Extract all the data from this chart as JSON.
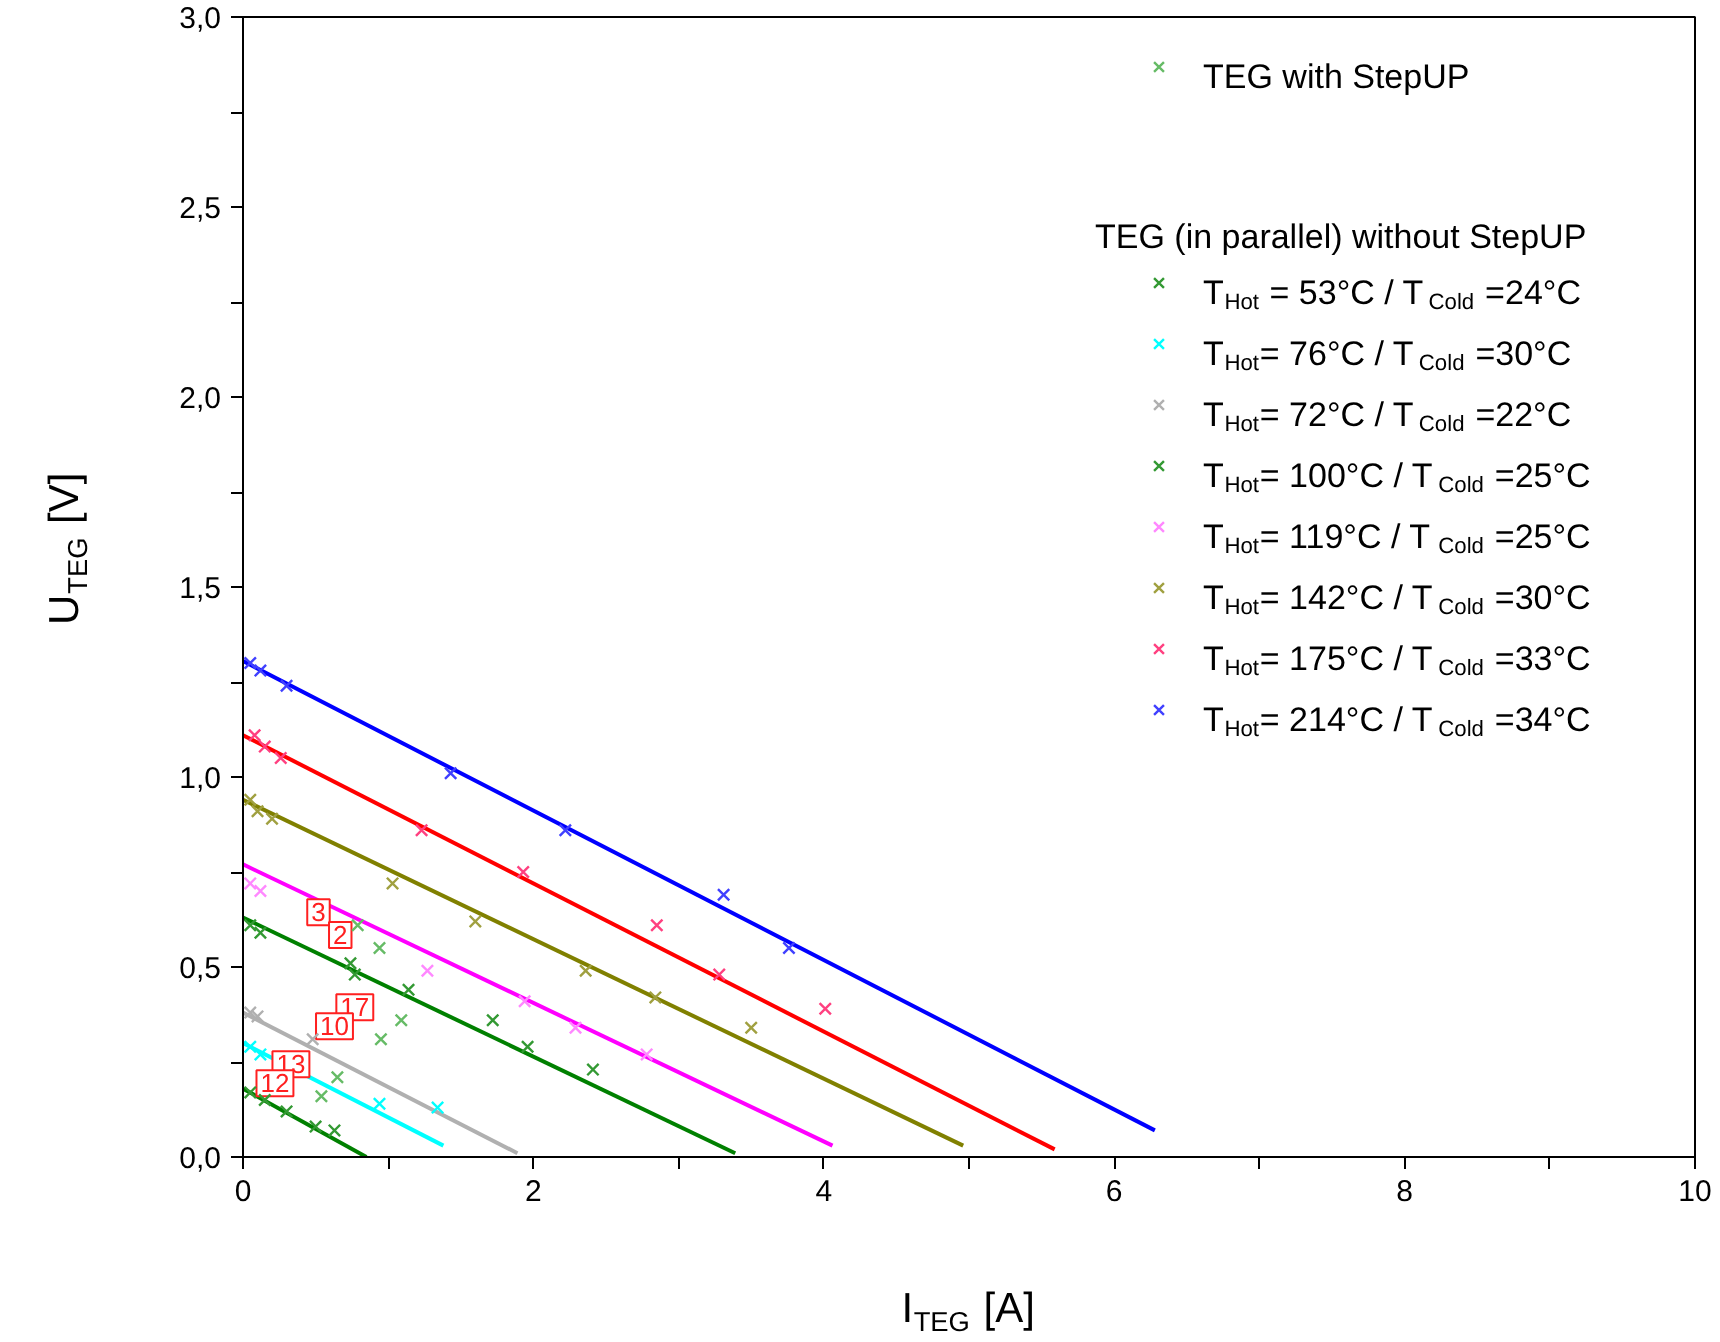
{
  "chart_data": {
    "type": "scatter",
    "xlabel": "I$_{TEG}$ [A]",
    "ylabel": "U$_{TEG}$ [V]",
    "legend_title": "TEG (in parallel) without StepUP",
    "legend": "top right",
    "marker": "cross",
    "grid": false,
    "xlim": [
      0,
      10
    ],
    "ylim": [
      0,
      3.0
    ],
    "xticks": [
      0,
      {
        "value": 1,
        "label": null
      },
      2,
      {
        "value": 3,
        "label": null
      },
      4,
      {
        "value": 5,
        "label": null
      },
      6,
      {
        "value": 7,
        "label": null
      },
      8,
      {
        "value": 9,
        "label": null
      },
      10
    ],
    "yticks": [
      {
        "value": 0,
        "label": "0,0"
      },
      {
        "value": 0.25,
        "label": null
      },
      {
        "value": 0.5,
        "label": "0,5"
      },
      {
        "value": 0.75,
        "label": null
      },
      {
        "value": 1.0,
        "label": "1,0"
      },
      {
        "value": 1.25,
        "label": null
      },
      {
        "value": 1.5,
        "label": "1,5"
      },
      {
        "value": 1.75,
        "label": null
      },
      {
        "value": 2.0,
        "label": "2,0"
      },
      {
        "value": 2.25,
        "label": null
      },
      {
        "value": 2.5,
        "label": "2,5"
      },
      {
        "value": 2.75,
        "label": null
      },
      {
        "value": 3.0,
        "label": "3,0"
      }
    ],
    "series": [
      {
        "name": "TEG with StepUP",
        "color": "#66bb66",
        "x": [
          0.79,
          0.94,
          1.09,
          0.95,
          0.65,
          0.54
        ],
        "values": [
          0.61,
          0.55,
          0.36,
          0.31,
          0.21,
          0.16
        ]
      },
      {
        "name": "T$_{Hot}$ = 53°C / T$_{Cold}$ =24°C",
        "color": "#339933",
        "x": [
          0.05,
          0.15,
          0.3,
          0.5,
          0.63
        ],
        "values": [
          0.17,
          0.15,
          0.12,
          0.08,
          0.07
        ]
      },
      {
        "name": "T$_{Hot}$=  76°C / T$_{Cold}$ =30°C",
        "color": "#00ffff",
        "x": [
          0.05,
          0.12,
          0.94,
          1.34
        ],
        "values": [
          0.29,
          0.27,
          0.14,
          0.13
        ]
      },
      {
        "name": "T$_{Hot}$=  72°C / T$_{Cold}$ =22°C",
        "color": "#b0b0b0",
        "x": [
          0.05,
          0.1,
          0.48
        ],
        "values": [
          0.38,
          0.37,
          0.31
        ]
      },
      {
        "name": "T$_{Hot}$= 100°C / T$_{Cold}$ =25°C",
        "color": "#339933",
        "x": [
          0.05,
          0.12,
          0.74,
          0.77,
          1.14,
          1.72,
          1.96,
          2.41
        ],
        "values": [
          0.61,
          0.59,
          0.51,
          0.48,
          0.44,
          0.36,
          0.29,
          0.23
        ]
      },
      {
        "name": "T$_{Hot}$= 119°C / T$_{Cold}$ =25°C",
        "color": "#ff88ff",
        "x": [
          0.05,
          0.12,
          1.27,
          1.94,
          2.29,
          2.78
        ],
        "values": [
          0.72,
          0.7,
          0.49,
          0.41,
          0.34,
          0.27
        ]
      },
      {
        "name": "T$_{Hot}$= 142°C / T$_{Cold}$ =30°C",
        "color": "#a0a040",
        "x": [
          0.05,
          0.1,
          0.2,
          1.03,
          1.6,
          2.36,
          2.84,
          3.5
        ],
        "values": [
          0.94,
          0.91,
          0.89,
          0.72,
          0.62,
          0.49,
          0.42,
          0.34
        ]
      },
      {
        "name": "T$_{Hot}$= 175°C / T$_{Cold}$ =33°C",
        "color": "#ff4080",
        "x": [
          0.08,
          0.15,
          0.26,
          1.23,
          1.93,
          2.85,
          3.28,
          4.01
        ],
        "values": [
          1.11,
          1.08,
          1.05,
          0.86,
          0.75,
          0.61,
          0.48,
          0.39
        ]
      },
      {
        "name": "T$_{Hot}$= 214°C / T$_{Cold}$ =34°C",
        "color": "#4040ff",
        "x": [
          0.05,
          0.12,
          0.3,
          1.43,
          2.22,
          3.31,
          3.76
        ],
        "values": [
          1.3,
          1.28,
          1.24,
          1.01,
          0.86,
          0.69,
          0.55
        ]
      },
      {
        "type": "line",
        "marker": "none",
        "color": "#008000",
        "x": [
          0,
          0.85
        ],
        "values": [
          0.18,
          0.0
        ]
      },
      {
        "type": "line",
        "marker": "none",
        "color": "#00ffff",
        "x": [
          0,
          1.38
        ],
        "values": [
          0.3,
          0.03
        ]
      },
      {
        "type": "line",
        "marker": "none",
        "color": "#b0b0b0",
        "x": [
          0,
          1.89
        ],
        "values": [
          0.38,
          0.01
        ]
      },
      {
        "type": "line",
        "marker": "none",
        "color": "#008000",
        "x": [
          0,
          3.39
        ],
        "values": [
          0.63,
          0.01
        ]
      },
      {
        "type": "line",
        "marker": "none",
        "color": "#ff00ff",
        "x": [
          0,
          4.06
        ],
        "values": [
          0.77,
          0.03
        ]
      },
      {
        "type": "line",
        "marker": "none",
        "color": "#808000",
        "x": [
          0,
          4.96
        ],
        "values": [
          0.94,
          0.03
        ]
      },
      {
        "type": "line",
        "marker": "none",
        "color": "#ff0000",
        "x": [
          0,
          5.59
        ],
        "values": [
          1.11,
          0.02
        ]
      },
      {
        "type": "line",
        "marker": "none",
        "color": "#0000ff",
        "x": [
          0,
          6.28
        ],
        "values": [
          1.305,
          0.07
        ]
      }
    ],
    "annotations": [
      {
        "text": "3",
        "x": 0.79,
        "y": 0.61
      },
      {
        "text": "2",
        "x": 0.94,
        "y": 0.55
      },
      {
        "text": "17",
        "x": 1.09,
        "y": 0.36
      },
      {
        "text": "10",
        "x": 0.95,
        "y": 0.31
      },
      {
        "text": "13",
        "x": 0.65,
        "y": 0.21
      },
      {
        "text": "12",
        "x": 0.54,
        "y": 0.16
      }
    ]
  }
}
